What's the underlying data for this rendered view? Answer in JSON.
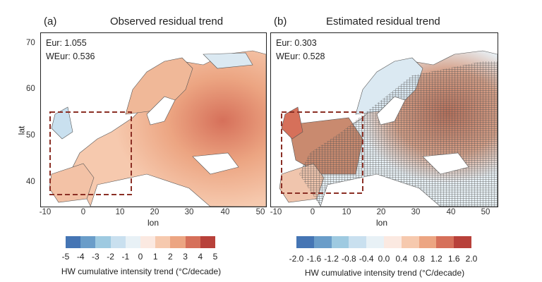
{
  "panels": [
    {
      "label": "(a)",
      "title": "Observed residual trend",
      "stats": [
        "Eur: 1.055",
        "WEur: 0.536"
      ],
      "hatched": false
    },
    {
      "label": "(b)",
      "title": "Estimated residual trend",
      "stats": [
        "Eur: 0.303",
        "WEur: 0.528"
      ],
      "hatched": true
    }
  ],
  "axes": {
    "xlabel": "lon",
    "ylabel": "lat",
    "xticks": [
      "-10",
      "0",
      "10",
      "20",
      "30",
      "40",
      "50"
    ],
    "yticks": [
      "70",
      "60",
      "50",
      "40"
    ]
  },
  "colorbars": [
    {
      "ticks": [
        "-5",
        "-4",
        "-3",
        "-2",
        "-1",
        "0",
        "1",
        "2",
        "3",
        "4",
        "5"
      ],
      "title": "HW cumulative intensity trend (°C/decade)"
    },
    {
      "ticks": [
        "-2.0",
        "-1.6",
        "-1.2",
        "-0.8",
        "-0.4",
        "0.0",
        "0.4",
        "0.8",
        "1.2",
        "1.6",
        "2.0"
      ],
      "title": "HW cumulative intensity trend (°C/decade)"
    }
  ],
  "colors": [
    "#4575b4",
    "#6a9dc9",
    "#9ecae1",
    "#c9e0ef",
    "#e8f1f6",
    "#fbe9e1",
    "#f6c9ae",
    "#eca582",
    "#d6705a",
    "#b8413a"
  ],
  "region_box_color": "#8b2f25"
}
